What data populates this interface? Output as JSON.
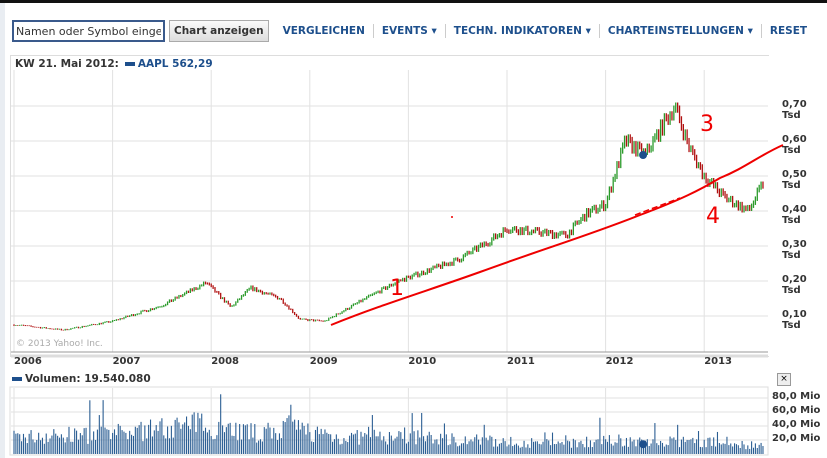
{
  "toolbar": {
    "search_placeholder": "Namen oder Symbol eingeben",
    "show_chart": "Chart anzeigen",
    "menus": [
      "VERGLEICHEN",
      "EVENTS ▾",
      "TECHN. INDIKATOREN ▾",
      "CHARTEINSTELLUNGEN ▾",
      "RESET"
    ]
  },
  "chart_header": {
    "date": "KW 21. Mai 2012:",
    "symbol": "AAPL 562,29",
    "series_color": "#1d4f8c"
  },
  "copyright": "© 2013 Yahoo! Inc.",
  "y_ticks": [
    "0,70 Tsd",
    "0,60 Tsd",
    "0,50 Tsd",
    "0,40 Tsd",
    "0,30 Tsd",
    "0,20 Tsd",
    "0,10 Tsd"
  ],
  "x_ticks": [
    "2006",
    "2007",
    "2008",
    "2009",
    "2010",
    "2011",
    "2012",
    "2013"
  ],
  "volume": {
    "label": "Volumen: 19.540.080",
    "close": "×",
    "ticks": [
      "80,0 Mio",
      "60,0 Mio",
      "40,0 Mio",
      "20,0 Mio"
    ]
  },
  "annotations": [
    "1",
    "3",
    "4"
  ],
  "chart_data": {
    "type": "line",
    "ylabel": "Tsd",
    "ylim": [
      0.0,
      0.8
    ],
    "xlim": [
      2006,
      2013.6
    ],
    "up_color": "#2a9a2a",
    "down_color": "#b01010",
    "price": [
      [
        2006.0,
        0.075
      ],
      [
        2006.5,
        0.06
      ],
      [
        2007.0,
        0.085
      ],
      [
        2007.5,
        0.13
      ],
      [
        2007.95,
        0.195
      ],
      [
        2008.2,
        0.125
      ],
      [
        2008.4,
        0.18
      ],
      [
        2008.7,
        0.15
      ],
      [
        2008.9,
        0.09
      ],
      [
        2009.15,
        0.085
      ],
      [
        2009.5,
        0.14
      ],
      [
        2009.9,
        0.2
      ],
      [
        2010.3,
        0.24
      ],
      [
        2010.5,
        0.26
      ],
      [
        2010.8,
        0.31
      ],
      [
        2011.0,
        0.35
      ],
      [
        2011.3,
        0.34
      ],
      [
        2011.6,
        0.33
      ],
      [
        2011.8,
        0.39
      ],
      [
        2012.0,
        0.42
      ],
      [
        2012.2,
        0.6
      ],
      [
        2012.4,
        0.56
      ],
      [
        2012.7,
        0.7
      ],
      [
        2012.85,
        0.58
      ],
      [
        2013.0,
        0.5
      ],
      [
        2013.2,
        0.44
      ],
      [
        2013.45,
        0.4
      ],
      [
        2013.6,
        0.48
      ]
    ],
    "volume_mio": [
      [
        2006,
        25
      ],
      [
        2007,
        30
      ],
      [
        2007.9,
        45
      ],
      [
        2008.5,
        30
      ],
      [
        2008.8,
        40
      ],
      [
        2009.3,
        25
      ],
      [
        2010,
        25
      ],
      [
        2010.5,
        22
      ],
      [
        2011,
        18
      ],
      [
        2011.5,
        15
      ],
      [
        2012,
        20
      ],
      [
        2012.5,
        18
      ],
      [
        2013,
        18
      ],
      [
        2013.6,
        12
      ]
    ]
  }
}
